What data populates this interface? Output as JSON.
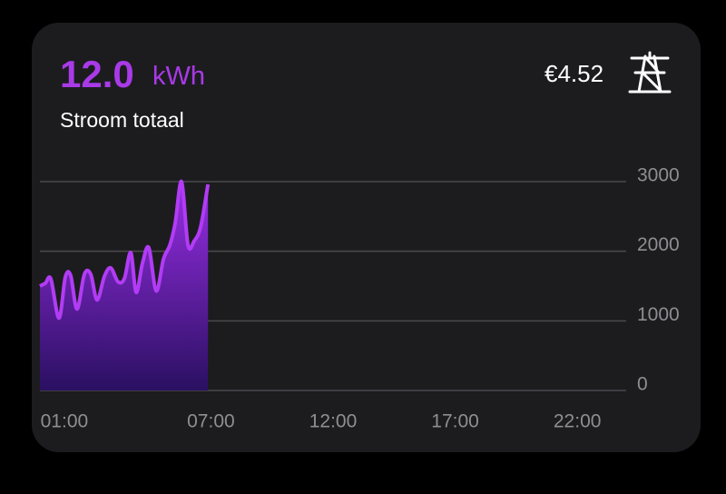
{
  "header": {
    "value": "12.0",
    "unit": "kWh",
    "label": "Stroom totaal",
    "cost": "€4.52"
  },
  "chart_data": {
    "type": "area",
    "x": [
      0,
      0.22,
      0.45,
      0.78,
      1.04,
      1.26,
      1.52,
      1.82,
      2.08,
      2.34,
      2.64,
      2.9,
      3.2,
      3.46,
      3.72,
      3.94,
      4.2,
      4.46,
      4.76,
      5.06,
      5.32,
      5.54,
      5.8,
      6.06,
      6.32,
      6.58,
      6.88
    ],
    "values": [
      1500,
      1540,
      1600,
      1040,
      1630,
      1650,
      1170,
      1670,
      1670,
      1300,
      1640,
      1760,
      1560,
      1610,
      1980,
      1410,
      1830,
      2050,
      1430,
      1890,
      2090,
      2410,
      3000,
      2090,
      2150,
      2350,
      2960
    ],
    "color": "#b23cf5",
    "xlim": [
      0,
      24
    ],
    "xticks": [
      {
        "value": 1,
        "label": "01:00"
      },
      {
        "value": 7,
        "label": "07:00"
      },
      {
        "value": 12,
        "label": "12:00"
      },
      {
        "value": 17,
        "label": "17:00"
      },
      {
        "value": 22,
        "label": "22:00"
      }
    ],
    "ylim": [
      0,
      3000
    ],
    "yticks": [
      0,
      1000,
      2000,
      3000
    ],
    "grid": true
  }
}
